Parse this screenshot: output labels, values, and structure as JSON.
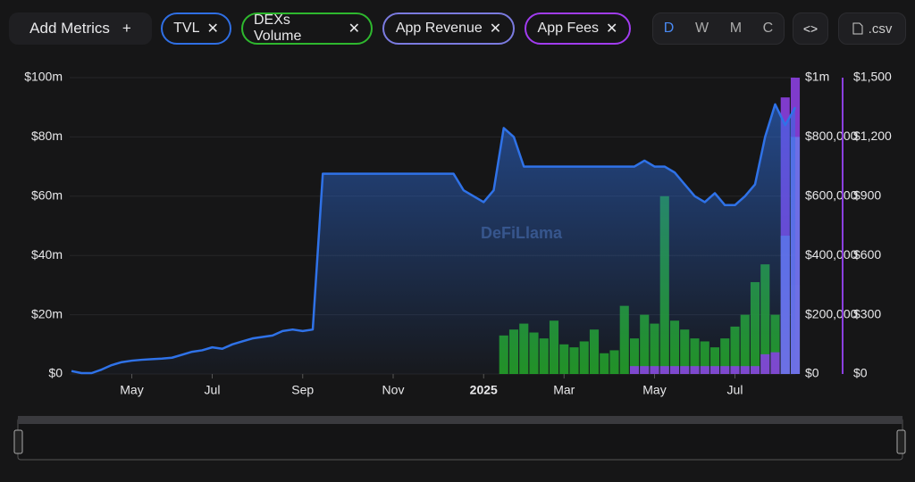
{
  "toolbar": {
    "add_metrics": "Add Metrics",
    "add_icon": "+",
    "chips": [
      "TVL",
      "DEXs Volume",
      "App Revenue",
      "App Fees"
    ],
    "chip_remove": "✕",
    "periods": [
      "D",
      "W",
      "M",
      "C"
    ],
    "embed": "<>",
    "csv": ".csv"
  },
  "chart_data": {
    "type": "combo",
    "watermark": "DeFiLlama",
    "grid": true,
    "categories": [
      null,
      null,
      null,
      null,
      null,
      null,
      "May",
      null,
      null,
      null,
      null,
      null,
      null,
      null,
      "Jul",
      null,
      null,
      null,
      null,
      null,
      null,
      null,
      null,
      "Sep",
      null,
      null,
      null,
      null,
      null,
      null,
      null,
      null,
      "Nov",
      null,
      null,
      null,
      null,
      null,
      null,
      null,
      null,
      "2025",
      null,
      null,
      null,
      null,
      null,
      null,
      null,
      "Mar",
      null,
      null,
      null,
      null,
      null,
      null,
      null,
      null,
      "May",
      null,
      null,
      null,
      null,
      null,
      null,
      null,
      "Jul",
      null,
      null,
      null,
      null,
      null,
      null
    ],
    "ylim": [
      0,
      100000000
    ],
    "yticks": [
      {
        "value": 0,
        "label": "$0"
      },
      {
        "value": 20000000,
        "label": "$20m"
      },
      {
        "value": 40000000,
        "label": "$40m"
      },
      {
        "value": 60000000,
        "label": "$60m"
      },
      {
        "value": 80000000,
        "label": "$80m"
      },
      {
        "value": 100000000,
        "label": "$100m"
      }
    ],
    "y2lim": [
      0,
      1000000
    ],
    "y2ticks": [
      {
        "value": 0,
        "label": "$0"
      },
      {
        "value": 200000,
        "label": "$200,000"
      },
      {
        "value": 400000,
        "label": "$400,000"
      },
      {
        "value": 600000,
        "label": "$600,000"
      },
      {
        "value": 800000,
        "label": "$800,000"
      },
      {
        "value": 1000000,
        "label": "$1m"
      }
    ],
    "y3lim": [
      0,
      1500
    ],
    "y3ticks": [
      {
        "value": 0,
        "label": "$0"
      },
      {
        "value": 300,
        "label": "$300"
      },
      {
        "value": 600,
        "label": "$600"
      },
      {
        "value": 900,
        "label": "$900"
      },
      {
        "value": 1200,
        "label": "$1,200"
      },
      {
        "value": 1500,
        "label": "$1,500"
      }
    ],
    "series": [
      {
        "name": "TVL",
        "type": "line",
        "axis": "y",
        "color": "#2f72e8",
        "values": [
          1000000,
          300000,
          300000,
          1500000,
          3000000,
          4000000,
          4500000,
          4800000,
          5000000,
          5200000,
          5500000,
          6500000,
          7500000,
          8000000,
          9000000,
          8500000,
          10000000,
          11000000,
          12000000,
          12500000,
          13000000,
          14500000,
          15000000,
          14500000,
          15000000,
          67600000,
          67600000,
          67600000,
          67600000,
          67600000,
          67600000,
          67600000,
          67600000,
          67600000,
          67600000,
          67600000,
          67600000,
          67600000,
          67600000,
          62000000,
          60000000,
          58000000,
          62000000,
          83000000,
          80000000,
          70000000,
          70000000,
          70000000,
          70000000,
          70000000,
          70000000,
          70000000,
          70000000,
          70000000,
          70000000,
          70000000,
          70000000,
          72000000,
          70000000,
          70000000,
          68000000,
          64000000,
          60000000,
          58000000,
          61000000,
          57000000,
          57000000,
          60000000,
          64000000,
          80000000,
          91000000,
          84000000,
          90000000
        ]
      },
      {
        "name": "DEXs Volume",
        "type": "bar",
        "axis": "y2",
        "color": "#22a022",
        "values": [
          null,
          null,
          null,
          null,
          null,
          null,
          null,
          null,
          null,
          null,
          null,
          null,
          null,
          null,
          null,
          null,
          null,
          null,
          null,
          null,
          null,
          null,
          null,
          null,
          null,
          null,
          null,
          null,
          null,
          null,
          null,
          null,
          null,
          null,
          null,
          null,
          null,
          null,
          null,
          null,
          null,
          null,
          null,
          130000,
          150000,
          170000,
          140000,
          120000,
          180000,
          100000,
          90000,
          110000,
          150000,
          70000,
          80000,
          230000,
          120000,
          200000,
          170000,
          600000,
          180000,
          150000,
          120000,
          110000,
          90000,
          120000,
          160000,
          200000,
          310000,
          370000,
          200000,
          250000,
          300000
        ]
      },
      {
        "name": "App Fees",
        "type": "bar",
        "axis": "y3",
        "color": "#8b3fe0",
        "values": [
          null,
          null,
          null,
          null,
          null,
          null,
          null,
          null,
          null,
          null,
          null,
          null,
          null,
          null,
          null,
          null,
          null,
          null,
          null,
          null,
          null,
          null,
          null,
          null,
          null,
          null,
          null,
          null,
          null,
          null,
          null,
          null,
          null,
          null,
          null,
          null,
          null,
          null,
          null,
          null,
          null,
          null,
          null,
          null,
          null,
          null,
          null,
          null,
          null,
          null,
          null,
          null,
          null,
          null,
          null,
          null,
          40,
          40,
          40,
          40,
          40,
          40,
          40,
          40,
          40,
          40,
          40,
          40,
          40,
          100,
          110,
          1400,
          1500
        ]
      },
      {
        "name": "App Revenue",
        "type": "bar",
        "axis": "y3",
        "color": "#6b74e8",
        "values": [
          null,
          null,
          null,
          null,
          null,
          null,
          null,
          null,
          null,
          null,
          null,
          null,
          null,
          null,
          null,
          null,
          null,
          null,
          null,
          null,
          null,
          null,
          null,
          null,
          null,
          null,
          null,
          null,
          null,
          null,
          null,
          null,
          null,
          null,
          null,
          null,
          null,
          null,
          null,
          null,
          null,
          null,
          null,
          null,
          null,
          null,
          null,
          null,
          null,
          null,
          null,
          null,
          null,
          null,
          null,
          null,
          null,
          null,
          null,
          null,
          null,
          null,
          null,
          null,
          null,
          null,
          null,
          null,
          null,
          null,
          null,
          700,
          1200
        ]
      }
    ]
  }
}
